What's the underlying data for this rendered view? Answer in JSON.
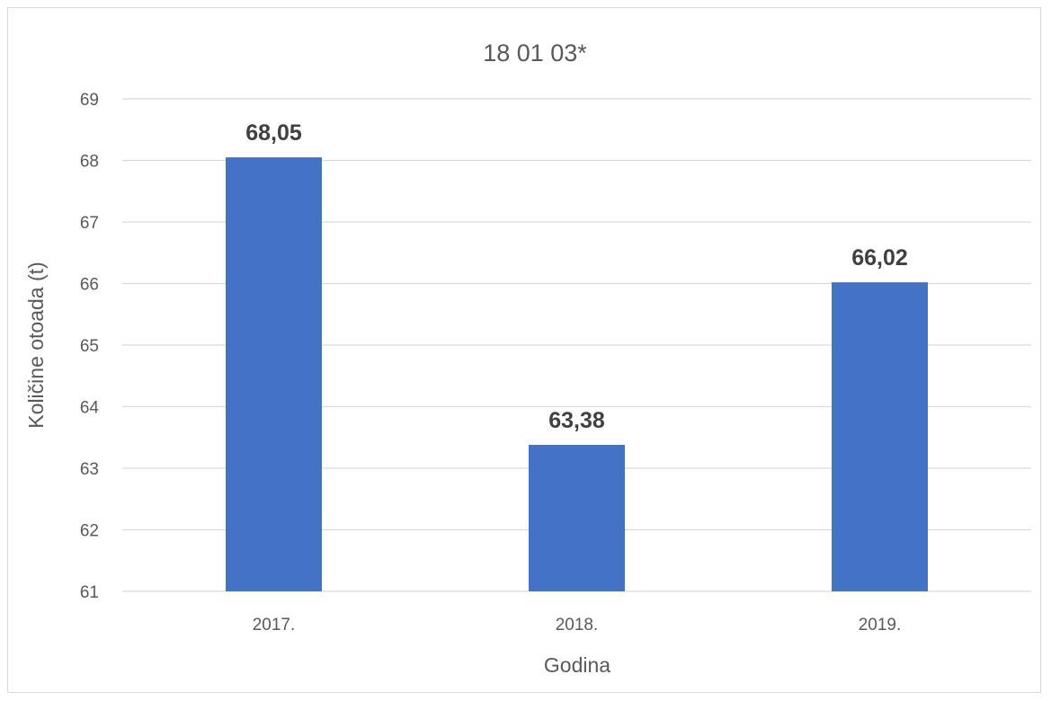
{
  "chart_data": {
    "type": "bar",
    "title": "18 01 03*",
    "xlabel": "Godina",
    "ylabel": "Količine otoada (t)",
    "categories": [
      "2017.",
      "2018.",
      "2019."
    ],
    "values": [
      68.05,
      63.38,
      66.02
    ],
    "data_labels": [
      "68,05",
      "63,38",
      "66,02"
    ],
    "yticks": [
      "61",
      "62",
      "63",
      "64",
      "65",
      "66",
      "67",
      "68",
      "69"
    ],
    "ylim": [
      61,
      69
    ],
    "grid": true,
    "legend": "none",
    "bar_color": "#4472c4",
    "grid_color": "#d9d9d9",
    "text_color": "#595959"
  }
}
